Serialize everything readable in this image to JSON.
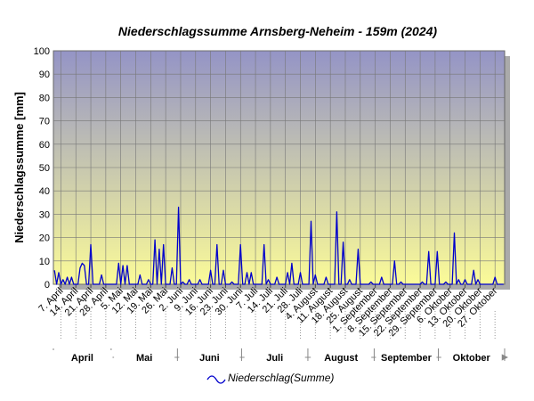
{
  "chart_data": {
    "type": "line",
    "title": "Niederschlagssumme Arnsberg-Neheim - 159m (2024)",
    "y_label": "Niederschlagssumme [mm]",
    "categories": [
      null,
      null,
      null,
      "7. April",
      null,
      null,
      null,
      null,
      null,
      null,
      "14. April",
      null,
      null,
      null,
      null,
      null,
      null,
      "21. April",
      null,
      null,
      null,
      null,
      null,
      null,
      "28. April",
      null,
      null,
      null,
      null,
      null,
      null,
      "5. Mai",
      null,
      null,
      null,
      null,
      null,
      null,
      "12. Mai",
      null,
      null,
      null,
      null,
      null,
      null,
      "19. Mai",
      null,
      null,
      null,
      null,
      null,
      null,
      "26. Mai",
      null,
      null,
      null,
      null,
      null,
      null,
      "2. Juni",
      null,
      null,
      null,
      null,
      null,
      null,
      "9. Juni",
      null,
      null,
      null,
      null,
      null,
      null,
      "16. Juni",
      null,
      null,
      null,
      null,
      null,
      null,
      "23. Juni",
      null,
      null,
      null,
      null,
      null,
      null,
      "30. Juni",
      null,
      null,
      null,
      null,
      null,
      null,
      "7. Juli",
      null,
      null,
      null,
      null,
      null,
      null,
      "14. Juli",
      null,
      null,
      null,
      null,
      null,
      null,
      "21. Juli",
      null,
      null,
      null,
      null,
      null,
      null,
      "28. Juli",
      null,
      null,
      null,
      null,
      null,
      null,
      "4. August",
      null,
      null,
      null,
      null,
      null,
      null,
      "11. August",
      null,
      null,
      null,
      null,
      null,
      null,
      "18. August",
      null,
      null,
      null,
      null,
      null,
      null,
      "25. August",
      null,
      null,
      null,
      null,
      null,
      null,
      "1. September",
      null,
      null,
      null,
      null,
      null,
      null,
      "8. September",
      null,
      null,
      null,
      null,
      null,
      null,
      "15. September",
      null,
      null,
      null,
      null,
      null,
      null,
      "22. September",
      null,
      null,
      null,
      null,
      null,
      null,
      "29. September",
      null,
      null,
      null,
      null,
      null,
      null,
      "6. Oktober",
      null,
      null,
      null,
      null,
      null,
      null,
      "13. Oktober",
      null,
      null,
      null,
      null,
      null,
      null,
      "20. Oktober",
      null,
      null,
      null,
      null,
      null,
      null,
      "27. Oktober",
      null,
      null,
      null,
      null
    ],
    "series": [
      {
        "name": "Niederschlag(Summe)",
        "color": "#0000cc",
        "values": [
          6,
          0,
          5,
          0,
          2,
          0,
          3,
          0,
          3,
          0,
          0,
          0,
          7,
          9,
          8,
          0,
          0,
          17,
          0,
          0,
          0,
          0,
          4,
          0,
          0,
          0,
          0,
          0,
          0,
          0,
          9,
          0,
          8,
          0,
          8,
          0,
          0,
          0,
          0,
          0,
          4,
          0,
          0,
          0,
          2,
          0,
          0,
          19,
          0,
          15,
          0,
          17,
          0,
          0,
          0,
          7,
          0,
          0,
          33,
          0,
          1,
          0,
          0,
          2,
          0,
          0,
          0,
          0,
          2,
          0,
          0,
          0,
          0,
          6,
          0,
          0,
          17,
          0,
          0,
          6,
          0,
          0,
          0,
          1,
          0,
          0,
          0,
          17,
          0,
          0,
          5,
          0,
          5,
          0,
          0,
          0,
          0,
          0,
          17,
          0,
          2,
          0,
          0,
          0,
          3,
          0,
          0,
          0,
          0,
          5,
          0,
          9,
          0,
          0,
          0,
          5,
          0,
          0,
          0,
          0,
          27,
          0,
          4,
          0,
          0,
          0,
          0,
          3,
          0,
          0,
          0,
          0,
          31,
          0,
          0,
          18,
          0,
          0,
          2,
          0,
          0,
          0,
          15,
          0,
          0,
          0,
          0,
          0,
          1,
          0,
          0,
          0,
          0,
          3,
          0,
          0,
          0,
          0,
          0,
          10,
          0,
          0,
          1,
          0,
          0,
          0,
          0,
          0,
          0,
          0,
          0,
          0,
          1,
          0,
          0,
          14,
          0,
          0,
          0,
          14,
          0,
          0,
          0,
          1,
          0,
          0,
          0,
          22,
          0,
          2,
          0,
          0,
          2,
          0,
          0,
          0,
          6,
          0,
          2,
          0,
          0,
          0,
          0,
          0,
          0,
          0,
          3,
          0,
          0,
          0,
          0
        ]
      }
    ],
    "month_labels": [
      "April",
      "Mai",
      "Juni",
      "Juli",
      "August",
      "September",
      "Oktober"
    ],
    "ylim": [
      0,
      100
    ],
    "yticks": [
      0,
      10,
      20,
      30,
      40,
      50,
      60,
      70,
      80,
      90,
      100
    ],
    "grid": true
  }
}
